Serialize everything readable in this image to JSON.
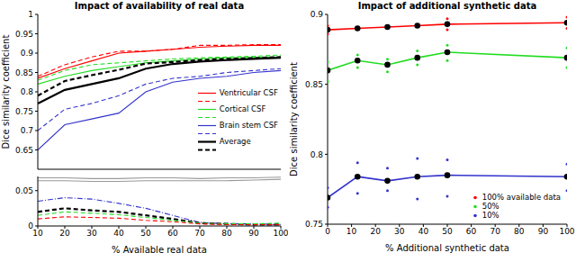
{
  "chart_data": [
    {
      "type": "line",
      "title": "Impact of availability of real data",
      "ylabel": "Dice similarity coefficient",
      "xlim": [
        10,
        100
      ],
      "xticks": [
        10,
        20,
        30,
        40,
        50,
        60,
        70,
        80,
        90,
        100
      ],
      "ylim": [
        0.6,
        1
      ],
      "yticks": [
        0.65,
        0.7,
        0.75,
        0.8,
        0.85,
        0.9,
        0.95,
        1
      ],
      "tick_labels": "y",
      "legend": "right",
      "x": [
        10,
        20,
        30,
        40,
        50,
        60,
        70,
        80,
        90,
        100
      ],
      "series": [
        {
          "name": "Ventricular CSF",
          "color": "#ff0000",
          "line_style": "solid",
          "values": [
            0.835,
            0.86,
            0.88,
            0.9,
            0.905,
            0.91,
            0.915,
            0.918,
            0.92,
            0.92
          ]
        },
        {
          "color": "#ff0000",
          "line_style": "dashed",
          "values": [
            0.84,
            0.87,
            0.89,
            0.905,
            0.905,
            0.91,
            0.92,
            0.92,
            0.922,
            0.922
          ]
        },
        {
          "name": "Cortical CSF",
          "color": "#22dd22",
          "line_style": "solid",
          "values": [
            0.82,
            0.84,
            0.855,
            0.865,
            0.875,
            0.88,
            0.885,
            0.888,
            0.889,
            0.89
          ]
        },
        {
          "color": "#22dd22",
          "line_style": "dashed",
          "values": [
            0.83,
            0.855,
            0.87,
            0.875,
            0.88,
            0.885,
            0.888,
            0.89,
            0.892,
            0.895
          ]
        },
        {
          "name": "Brain stem CSF",
          "color": "#3333cc",
          "line_style": "solid",
          "values": [
            0.65,
            0.715,
            0.73,
            0.745,
            0.8,
            0.825,
            0.835,
            0.84,
            0.85,
            0.855
          ]
        },
        {
          "color": "#3333cc",
          "line_style": "dashed",
          "values": [
            0.7,
            0.755,
            0.77,
            0.79,
            0.82,
            0.835,
            0.84,
            0.85,
            0.855,
            0.86
          ]
        },
        {
          "name": "Average",
          "color": "#000000",
          "line_style": "solid",
          "values": [
            0.77,
            0.805,
            0.82,
            0.835,
            0.86,
            0.872,
            0.878,
            0.882,
            0.885,
            0.888
          ]
        },
        {
          "color": "#000000",
          "line_style": "dashed",
          "values": [
            0.79,
            0.828,
            0.843,
            0.857,
            0.873,
            0.877,
            0.882,
            0.885,
            0.887,
            0.89
          ]
        }
      ]
    },
    {
      "type": "line",
      "xlabel": "% Available real data",
      "xlim": [
        10,
        100
      ],
      "xticks": [
        10,
        20,
        30,
        40,
        50,
        60,
        70,
        80,
        90,
        100
      ],
      "ylim": [
        0,
        0.07
      ],
      "yticks": [
        0,
        0.05
      ],
      "x": [
        10,
        20,
        30,
        40,
        50,
        60,
        70,
        80,
        90,
        100
      ],
      "series": [
        {
          "color": "#999999",
          "line_style": "solid",
          "values": [
            0.068,
            0.068,
            0.067,
            0.067,
            0.068,
            0.068,
            0.067,
            0.068,
            0.068,
            0.069
          ]
        },
        {
          "color": "#999999",
          "line_style": "solid",
          "values": [
            0.064,
            0.064,
            0.063,
            0.063,
            0.064,
            0.064,
            0.064,
            0.064,
            0.065,
            0.066
          ]
        },
        {
          "color": "#3333cc",
          "line_style": "dashdot",
          "values": [
            0.035,
            0.04,
            0.038,
            0.032,
            0.025,
            0.015,
            0.005,
            0.003,
            0.003,
            0.002
          ]
        },
        {
          "color": "#000000",
          "line_style": "dashed",
          "values": [
            0.02,
            0.025,
            0.022,
            0.02,
            0.015,
            0.01,
            0.004,
            0.003,
            0.002,
            0.002
          ]
        },
        {
          "color": "#22dd22",
          "line_style": "dashed",
          "values": [
            0.015,
            0.02,
            0.018,
            0.016,
            0.012,
            0.008,
            0.004,
            0.003,
            0.003,
            0.004
          ]
        },
        {
          "color": "#ff0000",
          "line_style": "dashed",
          "values": [
            0.01,
            0.013,
            0.012,
            0.011,
            0.008,
            0.006,
            0.003,
            0.002,
            0.002,
            0.002
          ]
        }
      ]
    },
    {
      "type": "line",
      "title": "Impact of additional synthetic data",
      "xlabel": "% Additional synthetic data",
      "ylabel": "Dice similarity coefficient",
      "xlim": [
        0,
        100
      ],
      "xticks": [
        0,
        10,
        20,
        30,
        40,
        50,
        60,
        70,
        80,
        90,
        100
      ],
      "ylim": [
        0.75,
        0.9
      ],
      "yticks": [
        0.75,
        0.8,
        0.85,
        0.9
      ],
      "legend": "lower right",
      "x": [
        0,
        12.5,
        25,
        37.5,
        50,
        100
      ],
      "series": [
        {
          "name": "100% available data",
          "color": "#ff0000",
          "marker": "circle",
          "line_style": "solid",
          "values": [
            0.889,
            0.89,
            0.891,
            0.892,
            0.893,
            0.894
          ],
          "points": {
            "x": [
              0,
              0,
              0,
              50,
              50,
              50,
              100,
              100,
              100
            ],
            "y": [
              0.886,
              0.889,
              0.892,
              0.889,
              0.893,
              0.897,
              0.89,
              0.894,
              0.898
            ]
          }
        },
        {
          "name": "50%",
          "color": "#22dd22",
          "marker": "circle",
          "line_style": "solid",
          "values": [
            0.86,
            0.867,
            0.864,
            0.869,
            0.873,
            0.869
          ],
          "points": {
            "x": [
              0,
              0,
              0,
              12.5,
              12.5,
              25,
              25,
              37.5,
              37.5,
              50,
              50,
              100,
              100,
              100
            ],
            "y": [
              0.852,
              0.86,
              0.866,
              0.862,
              0.871,
              0.859,
              0.868,
              0.864,
              0.874,
              0.867,
              0.878,
              0.862,
              0.87,
              0.876
            ]
          }
        },
        {
          "name": "10%",
          "color": "#3333cc",
          "marker": "circle",
          "line_style": "solid",
          "values": [
            0.769,
            0.784,
            0.781,
            0.784,
            0.785,
            0.784
          ],
          "points": {
            "x": [
              0,
              0,
              0,
              12.5,
              12.5,
              12.5,
              25,
              25,
              25,
              37.5,
              37.5,
              37.5,
              50,
              50,
              50,
              100,
              100,
              100
            ],
            "y": [
              0.762,
              0.769,
              0.776,
              0.772,
              0.784,
              0.794,
              0.774,
              0.781,
              0.79,
              0.768,
              0.784,
              0.797,
              0.77,
              0.785,
              0.796,
              0.774,
              0.784,
              0.793
            ]
          }
        }
      ]
    }
  ]
}
